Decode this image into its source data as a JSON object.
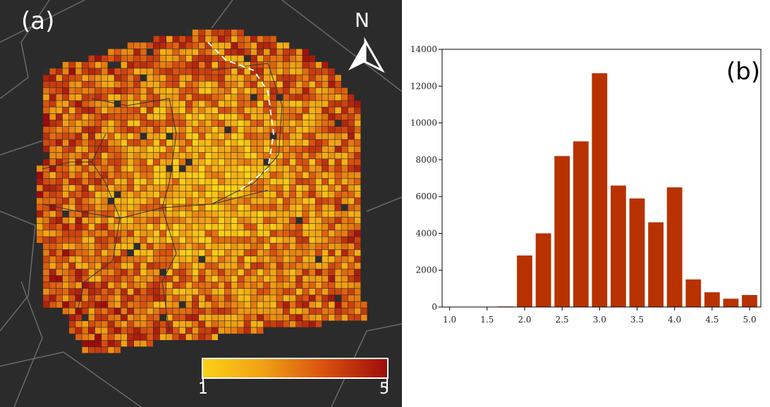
{
  "map": {
    "label": "(a)",
    "north_label": "N",
    "legend": {
      "min": "1",
      "max": "5",
      "colors": [
        "#fcd116",
        "#f0a014",
        "#d9500e",
        "#9e0b0b"
      ]
    },
    "no_data_color": "#2e2e2e",
    "background_color": "#2b2b2b"
  },
  "chart_data": {
    "type": "bar",
    "label": "(b)",
    "bar_color": "#b83200",
    "xlim": [
      0.9,
      5.15
    ],
    "ylim": [
      0,
      14000
    ],
    "x_ticks": [
      "1.0",
      "1.5",
      "2.0",
      "2.5",
      "3.0",
      "3.5",
      "4.0",
      "4.5",
      "5.0"
    ],
    "y_ticks": [
      "0",
      "2000",
      "4000",
      "6000",
      "8000",
      "10000",
      "12000",
      "14000"
    ],
    "bin_width": 0.25,
    "x": [
      1.0,
      1.25,
      1.5,
      1.75,
      2.0,
      2.25,
      2.5,
      2.75,
      3.0,
      3.25,
      3.5,
      3.75,
      4.0,
      4.25,
      4.5,
      4.75,
      5.0
    ],
    "values": [
      0,
      0,
      0,
      30,
      2800,
      4000,
      8200,
      9000,
      12700,
      6600,
      5900,
      4600,
      6500,
      1500,
      800,
      450,
      650
    ]
  }
}
